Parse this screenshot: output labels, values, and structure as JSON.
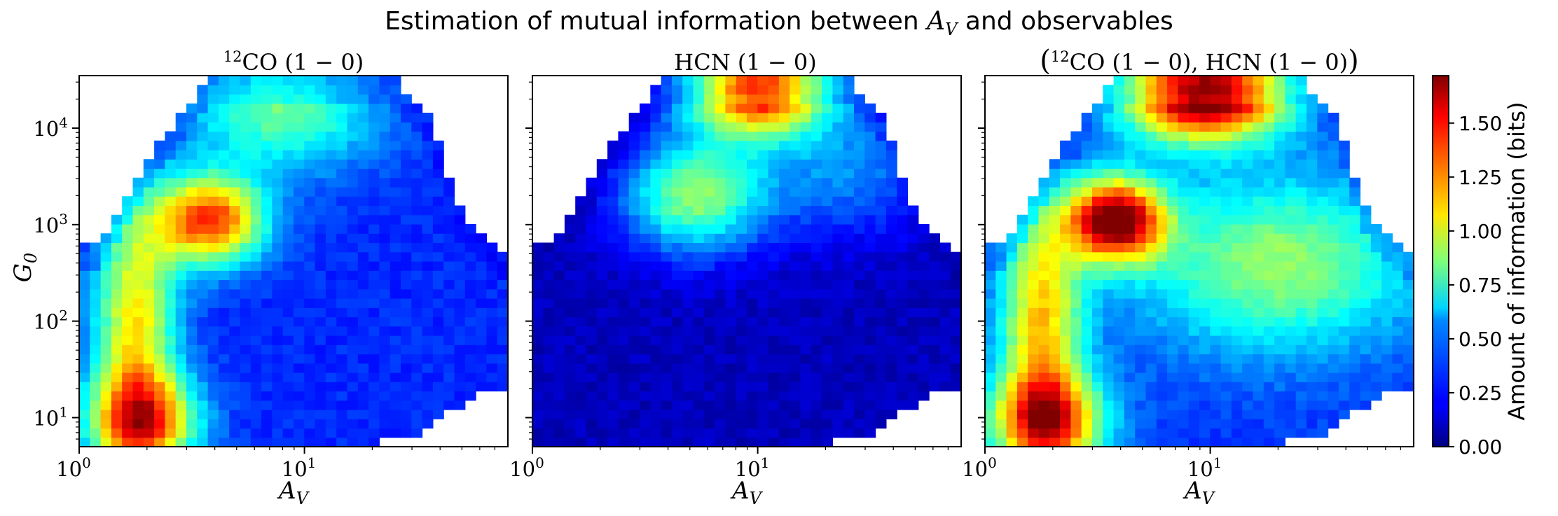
{
  "chart_data": {
    "type": "heatmap",
    "suptitle": "Estimation of mutual information between A_V and observables",
    "suptitle_parts": {
      "before": "Estimation of mutual information between ",
      "symbol": "A",
      "subscript": "V",
      "after": " and observables"
    },
    "x_axis": {
      "label": "A",
      "label_subscript": "V",
      "scale": "log",
      "range": [
        1,
        80
      ],
      "ticks": [
        1,
        10
      ],
      "tick_bases": [
        "10",
        "10"
      ],
      "tick_exponents": [
        "0",
        "1"
      ]
    },
    "y_axis": {
      "label": "G",
      "label_subscript": "0",
      "scale": "log",
      "range": [
        5,
        35000
      ],
      "ticks": [
        10,
        100,
        1000,
        10000
      ],
      "tick_bases": [
        "10",
        "10",
        "10",
        "10"
      ],
      "tick_exponents": [
        "1",
        "2",
        "3",
        "4"
      ]
    },
    "colorbar": {
      "label": "Amount of information (bits)",
      "colormap": "jet",
      "range": [
        0,
        1.72
      ],
      "ticks": [
        "0.00",
        "0.25",
        "0.50",
        "0.75",
        "1.00",
        "1.25",
        "1.50"
      ]
    },
    "grid": {
      "nx": 40,
      "ny": 40,
      "log_x_range": [
        0,
        1.903
      ],
      "log_y_range": [
        0.699,
        4.544
      ]
    },
    "support_outline": {
      "description": "Maximum log10(G0) with data, by log10(A_V)",
      "log_av": [
        0.1,
        0.16,
        0.22,
        0.28,
        0.33,
        0.38,
        0.45,
        0.52,
        0.56,
        0.6,
        1.0,
        1.38,
        1.45,
        1.5,
        1.55,
        1.62,
        1.7,
        1.78,
        1.85,
        1.903
      ],
      "max_log_g0": [
        2.75,
        3.08,
        3.3,
        3.48,
        3.68,
        3.88,
        4.1,
        4.3,
        4.45,
        4.544,
        4.544,
        4.544,
        4.35,
        4.25,
        4.1,
        3.65,
        3.05,
        2.88,
        2.7,
        2.7
      ],
      "min_log_g0_fade": {
        "log_av": [
          1.2,
          1.5,
          1.8
        ],
        "min_log_g0": [
          0.699,
          0.8,
          1.3
        ]
      }
    },
    "panels": [
      {
        "title": "12CO (1-0)",
        "title_parts": {
          "sup": "12",
          "main": "CO (1 − 0)"
        },
        "peak": {
          "log_av": 0.58,
          "log_g0": 3.05,
          "value": 1.15
        },
        "components": [
          {
            "log_av": 0.58,
            "log_g0": 3.05,
            "amp": 1.15,
            "sx": 0.17,
            "sy": 0.32
          },
          {
            "log_av": 0.28,
            "log_g0": 0.95,
            "amp": 1.0,
            "sx": 0.17,
            "sy": 0.35
          },
          {
            "log_av": 0.25,
            "log_g0": 2.0,
            "amp": 0.82,
            "sx": 0.13,
            "sy": 0.9
          },
          {
            "log_av": 0.9,
            "log_g0": 4.2,
            "amp": 0.55,
            "sx": 0.3,
            "sy": 0.45
          }
        ],
        "baseline": 0.28
      },
      {
        "title": "HCN (1-0)",
        "title_parts": {
          "sup": "",
          "main": "HCN (1 − 0)"
        },
        "peak": {
          "log_av": 1.0,
          "log_g0": 4.45,
          "value": 1.55
        },
        "components": [
          {
            "log_av": 1.0,
            "log_g0": 4.45,
            "amp": 1.55,
            "sx": 0.22,
            "sy": 0.35
          },
          {
            "log_av": 0.72,
            "log_g0": 3.3,
            "amp": 0.78,
            "sx": 0.22,
            "sy": 0.42
          },
          {
            "log_av": 1.4,
            "log_g0": 3.6,
            "amp": 0.35,
            "sx": 0.3,
            "sy": 0.5
          }
        ],
        "baseline": 0.1
      },
      {
        "title": "(12CO (1-0), HCN (1-0))",
        "title_parts": {
          "sup": "12",
          "main": "CO (1 − 0), HCN (1 − 0)"
        },
        "peak": {
          "log_av": 1.0,
          "log_g0": 4.45,
          "value": 1.72
        },
        "components": [
          {
            "log_av": 0.98,
            "log_g0": 4.4,
            "amp": 1.7,
            "sx": 0.25,
            "sy": 0.35
          },
          {
            "log_av": 0.58,
            "log_g0": 3.05,
            "amp": 1.45,
            "sx": 0.15,
            "sy": 0.3
          },
          {
            "log_av": 0.28,
            "log_g0": 0.95,
            "amp": 1.05,
            "sx": 0.18,
            "sy": 0.35
          },
          {
            "log_av": 0.25,
            "log_g0": 2.0,
            "amp": 0.85,
            "sx": 0.13,
            "sy": 0.9
          },
          {
            "log_av": 1.3,
            "log_g0": 2.6,
            "amp": 0.6,
            "sx": 0.45,
            "sy": 0.65
          }
        ],
        "baseline": 0.3
      }
    ]
  }
}
